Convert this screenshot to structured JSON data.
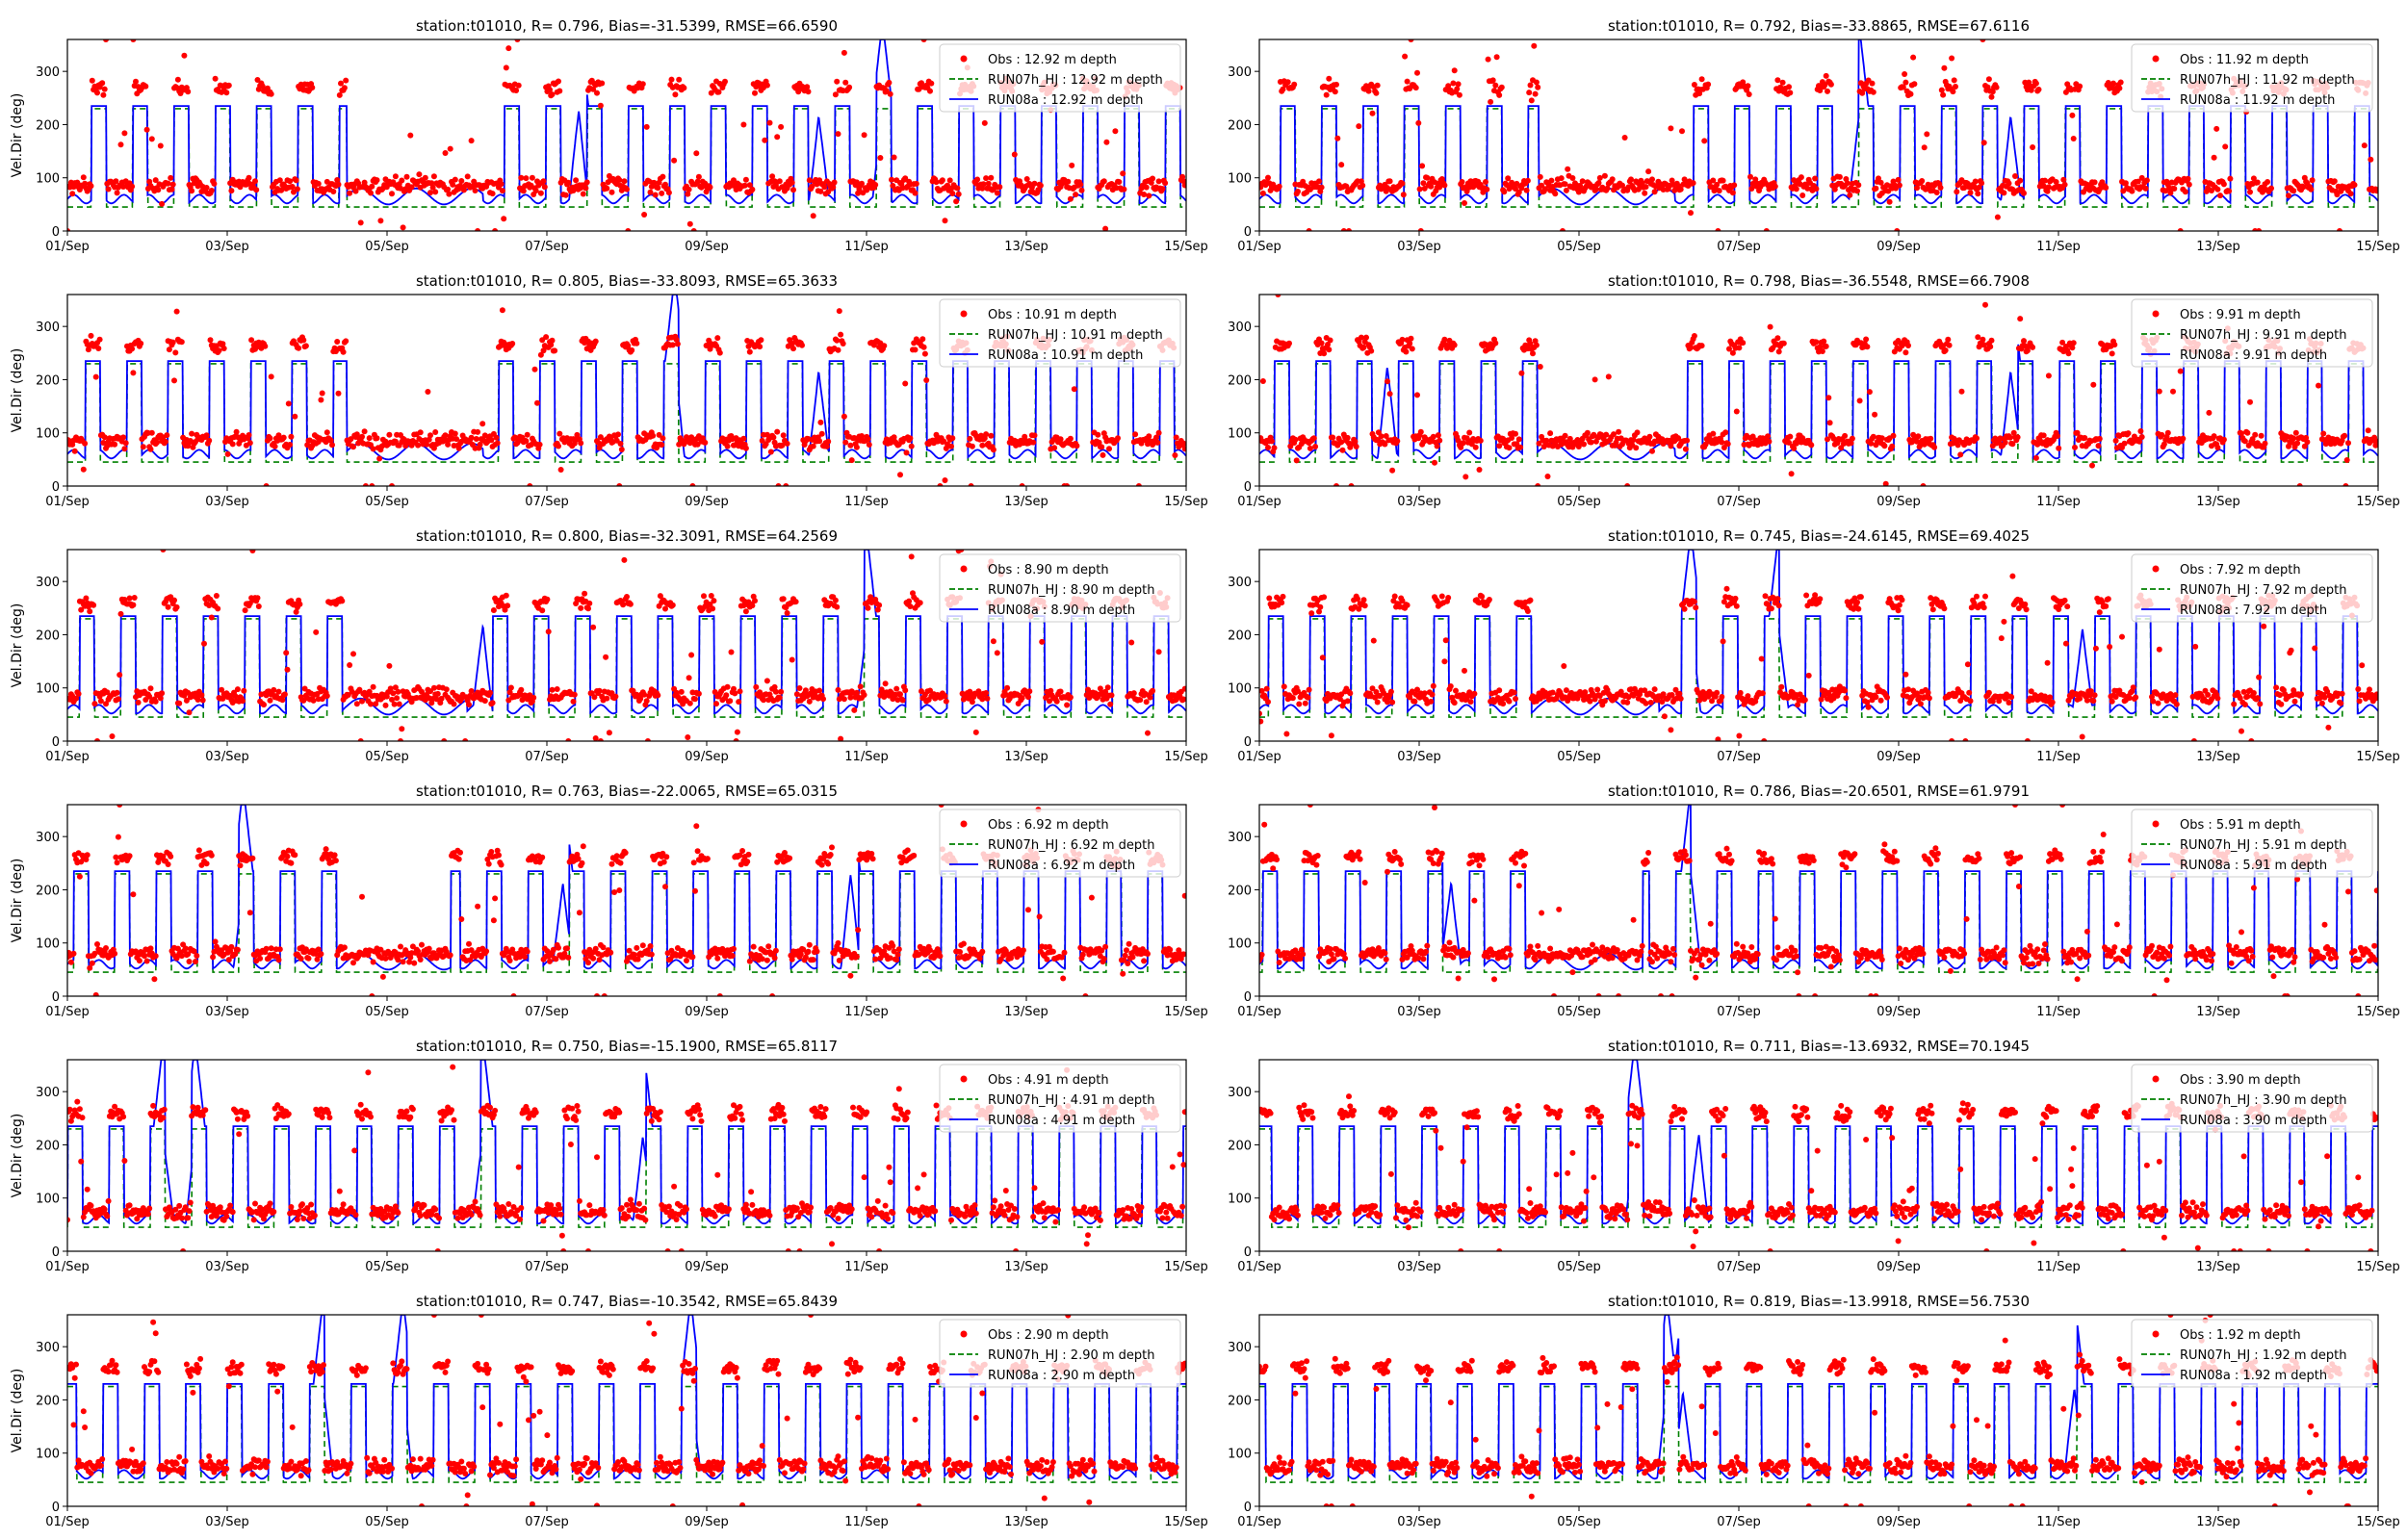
{
  "figure": {
    "ylabel": "Vel.Dir (deg)",
    "date_ticks": [
      "01/Sep",
      "03/Sep",
      "05/Sep",
      "07/Sep",
      "09/Sep",
      "11/Sep",
      "13/Sep",
      "15/Sep"
    ],
    "y_ticks": [
      "0",
      "100",
      "200",
      "300"
    ]
  },
  "chart_data": [
    {
      "type": "line",
      "title": "station:t01010, R= 0.796, Bias=-31.5399, RMSE=66.6590",
      "xlabel": "",
      "ylabel": "Vel.Dir (deg)",
      "xlim": [
        "01/Sep",
        "15/Sep"
      ],
      "ylim": [
        0,
        360
      ],
      "legend": "top-right",
      "grid": false,
      "series": [
        {
          "name": "Obs : 12.92 m depth",
          "style": "dots",
          "color": "#ff0000"
        },
        {
          "name": "RUN07h_HJ : 12.92 m depth",
          "style": "dashed",
          "color": "#008000"
        },
        {
          "name": "RUN08a : 12.92 m depth",
          "style": "solid",
          "color": "#0000ff"
        }
      ],
      "levels": {
        "obs_low": 85,
        "obs_high": 270,
        "run07_low": 45,
        "run07_high": 230,
        "run08_low": 60,
        "run08_high": 235
      },
      "quiet_periods": [
        [
          3.5,
          5.2
        ]
      ],
      "spikes": [
        6.4,
        9.4,
        10.2
      ]
    },
    {
      "type": "line",
      "title": "station:t01010, R= 0.792, Bias=-33.8865, RMSE=67.6116",
      "xlabel": "",
      "ylabel": "",
      "xlim": [
        "01/Sep",
        "15/Sep"
      ],
      "ylim": [
        0,
        360
      ],
      "legend": "top-right",
      "grid": false,
      "series": [
        {
          "name": "Obs : 11.92 m depth",
          "style": "dots",
          "color": "#ff0000"
        },
        {
          "name": "RUN07h_HJ : 11.92 m depth",
          "style": "dashed",
          "color": "#008000"
        },
        {
          "name": "RUN08a : 11.92 m depth",
          "style": "solid",
          "color": "#0000ff"
        }
      ],
      "levels": {
        "obs_low": 85,
        "obs_high": 270,
        "run07_low": 45,
        "run07_high": 230,
        "run08_low": 60,
        "run08_high": 235
      },
      "quiet_periods": [
        [
          3.5,
          5.2
        ]
      ],
      "spikes": [
        7.5,
        9.4
      ]
    },
    {
      "type": "line",
      "title": "station:t01010, R= 0.805, Bias=-33.8093, RMSE=65.3633",
      "xlabel": "",
      "ylabel": "Vel.Dir (deg)",
      "xlim": [
        "01/Sep",
        "15/Sep"
      ],
      "ylim": [
        0,
        360
      ],
      "legend": "top-right",
      "grid": false,
      "series": [
        {
          "name": "Obs : 10.91 m depth",
          "style": "dots",
          "color": "#ff0000"
        },
        {
          "name": "RUN07h_HJ : 10.91 m depth",
          "style": "dashed",
          "color": "#008000"
        },
        {
          "name": "RUN08a : 10.91 m depth",
          "style": "solid",
          "color": "#0000ff"
        }
      ],
      "levels": {
        "obs_low": 85,
        "obs_high": 265,
        "run07_low": 45,
        "run07_high": 230,
        "run08_low": 60,
        "run08_high": 235
      },
      "quiet_periods": [
        [
          3.5,
          5.2
        ]
      ],
      "spikes": [
        7.6,
        9.4
      ]
    },
    {
      "type": "line",
      "title": "station:t01010, R= 0.798, Bias=-36.5548, RMSE=66.7908",
      "xlabel": "",
      "ylabel": "",
      "xlim": [
        "01/Sep",
        "15/Sep"
      ],
      "ylim": [
        0,
        360
      ],
      "legend": "top-right",
      "grid": false,
      "series": [
        {
          "name": "Obs : 9.91 m depth",
          "style": "dots",
          "color": "#ff0000"
        },
        {
          "name": "RUN07h_HJ : 9.91 m depth",
          "style": "dashed",
          "color": "#008000"
        },
        {
          "name": "RUN08a : 9.91 m depth",
          "style": "solid",
          "color": "#0000ff"
        }
      ],
      "levels": {
        "obs_low": 85,
        "obs_high": 265,
        "run07_low": 45,
        "run07_high": 230,
        "run08_low": 60,
        "run08_high": 235
      },
      "quiet_periods": [
        [
          3.5,
          5.2
        ]
      ],
      "spikes": [
        9.4,
        1.6
      ]
    },
    {
      "type": "line",
      "title": "station:t01010, R= 0.800, Bias=-32.3091, RMSE=64.2569",
      "xlabel": "",
      "ylabel": "Vel.Dir (deg)",
      "xlim": [
        "01/Sep",
        "15/Sep"
      ],
      "ylim": [
        0,
        360
      ],
      "legend": "top-right",
      "grid": false,
      "series": [
        {
          "name": "Obs : 8.90 m depth",
          "style": "dots",
          "color": "#ff0000"
        },
        {
          "name": "RUN07h_HJ : 8.90 m depth",
          "style": "dashed",
          "color": "#008000"
        },
        {
          "name": "RUN08a : 8.90 m depth",
          "style": "solid",
          "color": "#0000ff"
        }
      ],
      "levels": {
        "obs_low": 85,
        "obs_high": 260,
        "run07_low": 45,
        "run07_high": 230,
        "run08_low": 60,
        "run08_high": 235
      },
      "quiet_periods": [
        [
          3.5,
          5.0
        ]
      ],
      "spikes": [
        5.2,
        10.0
      ]
    },
    {
      "type": "line",
      "title": "station:t01010, R= 0.745, Bias=-24.6145, RMSE=69.4025",
      "xlabel": "",
      "ylabel": "",
      "xlim": [
        "01/Sep",
        "15/Sep"
      ],
      "ylim": [
        0,
        360
      ],
      "legend": "top-right",
      "grid": false,
      "series": [
        {
          "name": "Obs : 7.92 m depth",
          "style": "dots",
          "color": "#ff0000"
        },
        {
          "name": "RUN07h_HJ : 7.92 m depth",
          "style": "dashed",
          "color": "#008000"
        },
        {
          "name": "RUN08a : 7.92 m depth",
          "style": "solid",
          "color": "#0000ff"
        }
      ],
      "levels": {
        "obs_low": 85,
        "obs_high": 260,
        "run07_low": 45,
        "run07_high": 230,
        "run08_low": 60,
        "run08_high": 235
      },
      "quiet_periods": [
        [
          3.5,
          5.0
        ]
      ],
      "spikes": [
        5.4,
        6.5,
        10.3
      ]
    },
    {
      "type": "line",
      "title": "station:t01010, R= 0.763, Bias=-22.0065, RMSE=65.0315",
      "xlabel": "",
      "ylabel": "Vel.Dir (deg)",
      "xlim": [
        "01/Sep",
        "15/Sep"
      ],
      "ylim": [
        0,
        360
      ],
      "legend": "top-right",
      "grid": false,
      "series": [
        {
          "name": "Obs : 6.92 m depth",
          "style": "dots",
          "color": "#ff0000"
        },
        {
          "name": "RUN07h_HJ : 6.92 m depth",
          "style": "dashed",
          "color": "#008000"
        },
        {
          "name": "RUN08a : 6.92 m depth",
          "style": "solid",
          "color": "#0000ff"
        }
      ],
      "levels": {
        "obs_low": 80,
        "obs_high": 260,
        "run07_low": 45,
        "run07_high": 230,
        "run08_low": 60,
        "run08_high": 235
      },
      "quiet_periods": [
        [
          3.5,
          4.8
        ]
      ],
      "spikes": [
        2.2,
        6.2,
        9.8
      ]
    },
    {
      "type": "line",
      "title": "station:t01010, R= 0.786, Bias=-20.6501, RMSE=61.9791",
      "xlabel": "",
      "ylabel": "",
      "xlim": [
        "01/Sep",
        "15/Sep"
      ],
      "ylim": [
        0,
        360
      ],
      "legend": "top-right",
      "grid": false,
      "series": [
        {
          "name": "Obs : 5.91 m depth",
          "style": "dots",
          "color": "#ff0000"
        },
        {
          "name": "RUN07h_HJ : 5.91 m depth",
          "style": "dashed",
          "color": "#008000"
        },
        {
          "name": "RUN08a : 5.91 m depth",
          "style": "solid",
          "color": "#0000ff"
        }
      ],
      "levels": {
        "obs_low": 80,
        "obs_high": 260,
        "run07_low": 45,
        "run07_high": 230,
        "run08_low": 60,
        "run08_high": 235
      },
      "quiet_periods": [
        [
          3.5,
          4.8
        ]
      ],
      "spikes": [
        2.4,
        5.4
      ]
    },
    {
      "type": "line",
      "title": "station:t01010, R= 0.750, Bias=-15.1900, RMSE=65.8117",
      "xlabel": "",
      "ylabel": "Vel.Dir (deg)",
      "xlim": [
        "01/Sep",
        "15/Sep"
      ],
      "ylim": [
        0,
        360
      ],
      "legend": "top-right",
      "grid": false,
      "series": [
        {
          "name": "Obs : 4.91 m depth",
          "style": "dots",
          "color": "#ff0000"
        },
        {
          "name": "RUN07h_HJ : 4.91 m depth",
          "style": "dashed",
          "color": "#008000"
        },
        {
          "name": "RUN08a : 4.91 m depth",
          "style": "solid",
          "color": "#0000ff"
        }
      ],
      "levels": {
        "obs_low": 75,
        "obs_high": 260,
        "run07_low": 45,
        "run07_high": 230,
        "run08_low": 60,
        "run08_high": 235
      },
      "quiet_periods": [],
      "spikes": [
        1.2,
        1.6,
        5.2,
        7.2
      ]
    },
    {
      "type": "line",
      "title": "station:t01010, R= 0.711, Bias=-13.6932, RMSE=70.1945",
      "xlabel": "",
      "ylabel": "",
      "xlim": [
        "01/Sep",
        "15/Sep"
      ],
      "ylim": [
        0,
        360
      ],
      "legend": "top-right",
      "grid": false,
      "series": [
        {
          "name": "Obs : 3.90 m depth",
          "style": "dots",
          "color": "#ff0000"
        },
        {
          "name": "RUN07h_HJ : 3.90 m depth",
          "style": "dashed",
          "color": "#008000"
        },
        {
          "name": "RUN08a : 3.90 m depth",
          "style": "solid",
          "color": "#0000ff"
        }
      ],
      "levels": {
        "obs_low": 75,
        "obs_high": 260,
        "run07_low": 45,
        "run07_high": 230,
        "run08_low": 60,
        "run08_high": 235
      },
      "quiet_periods": [],
      "spikes": [
        4.7,
        5.5
      ]
    },
    {
      "type": "line",
      "title": "station:t01010, R= 0.747, Bias=-10.3542, RMSE=65.8439",
      "xlabel": "",
      "ylabel": "Vel.Dir (deg)",
      "xlim": [
        "01/Sep",
        "15/Sep"
      ],
      "ylim": [
        0,
        360
      ],
      "legend": "top-right",
      "grid": false,
      "series": [
        {
          "name": "Obs : 2.90 m depth",
          "style": "dots",
          "color": "#ff0000"
        },
        {
          "name": "RUN07h_HJ : 2.90 m depth",
          "style": "dashed",
          "color": "#008000"
        },
        {
          "name": "RUN08a : 2.90 m depth",
          "style": "solid",
          "color": "#0000ff"
        }
      ],
      "levels": {
        "obs_low": 75,
        "obs_high": 260,
        "run07_low": 45,
        "run07_high": 225,
        "run08_low": 60,
        "run08_high": 230
      },
      "quiet_periods": [],
      "spikes": [
        3.2,
        4.2,
        7.8
      ]
    },
    {
      "type": "line",
      "title": "station:t01010, R= 0.819, Bias=-13.9918, RMSE=56.7530",
      "xlabel": "",
      "ylabel": "",
      "xlim": [
        "01/Sep",
        "15/Sep"
      ],
      "ylim": [
        0,
        360
      ],
      "legend": "top-right",
      "grid": false,
      "series": [
        {
          "name": "Obs : 1.92 m depth",
          "style": "dots",
          "color": "#ff0000"
        },
        {
          "name": "RUN07h_HJ : 1.92 m depth",
          "style": "dashed",
          "color": "#008000"
        },
        {
          "name": "RUN08a : 1.92 m depth",
          "style": "solid",
          "color": "#0000ff"
        }
      ],
      "levels": {
        "obs_low": 75,
        "obs_high": 260,
        "run07_low": 45,
        "run07_high": 225,
        "run08_low": 60,
        "run08_high": 230
      },
      "quiet_periods": [],
      "spikes": [
        5.1,
        5.3,
        10.2
      ]
    }
  ]
}
